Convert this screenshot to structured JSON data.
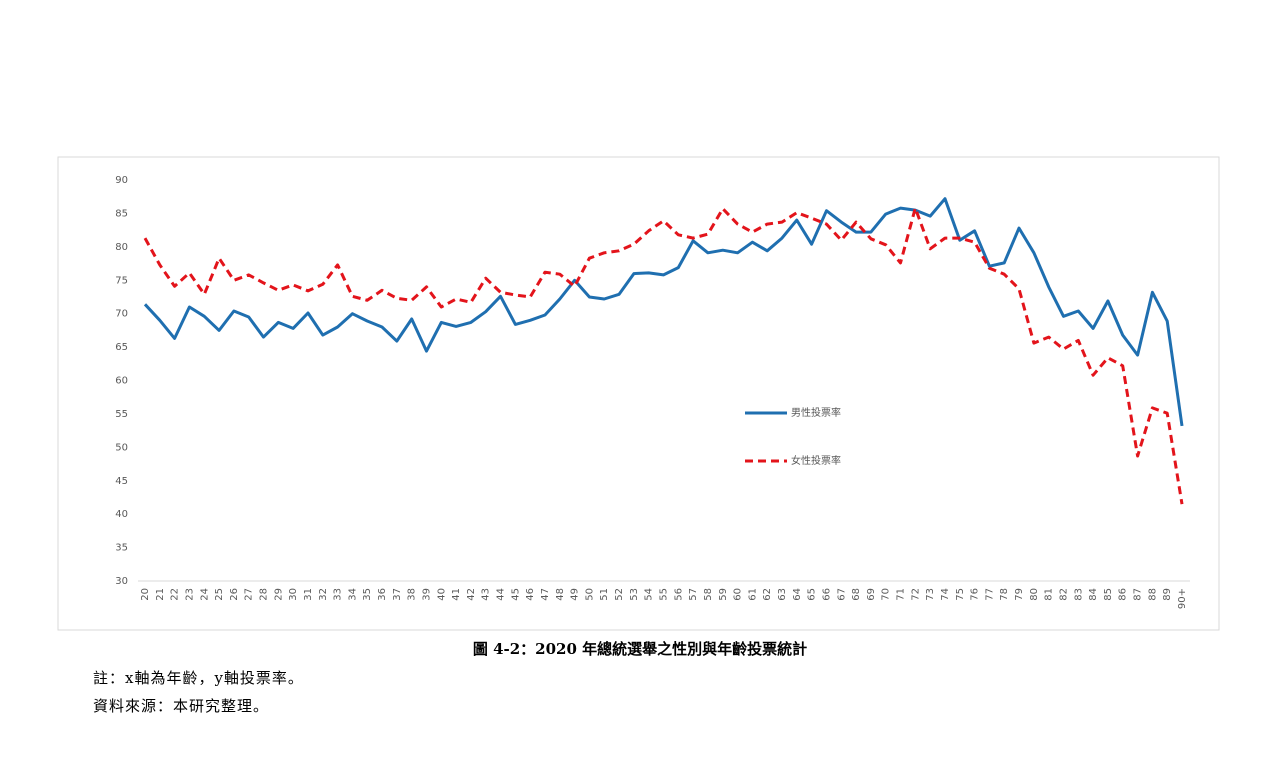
{
  "chart_data": {
    "type": "line",
    "categories": [
      "20",
      "21",
      "22",
      "23",
      "24",
      "25",
      "26",
      "27",
      "28",
      "29",
      "30",
      "31",
      "32",
      "33",
      "34",
      "35",
      "36",
      "37",
      "38",
      "39",
      "40",
      "41",
      "42",
      "43",
      "44",
      "45",
      "46",
      "47",
      "48",
      "49",
      "50",
      "51",
      "52",
      "53",
      "54",
      "55",
      "56",
      "57",
      "58",
      "59",
      "60",
      "61",
      "62",
      "63",
      "64",
      "65",
      "66",
      "67",
      "68",
      "69",
      "70",
      "71",
      "72",
      "73",
      "74",
      "75",
      "76",
      "77",
      "78",
      "79",
      "80",
      "81",
      "82",
      "83",
      "84",
      "85",
      "86",
      "87",
      "88",
      "89",
      "90+"
    ],
    "series": [
      {
        "name": "男性投票率",
        "color": "#1f6fb0",
        "dash": false,
        "values": [
          71.4,
          69,
          66.3,
          71,
          69.6,
          67.5,
          70.4,
          69.5,
          66.5,
          68.7,
          67.8,
          70.1,
          66.8,
          68,
          70,
          68.9,
          68,
          65.9,
          69.2,
          64.4,
          68.7,
          68.1,
          68.7,
          70.3,
          72.6,
          68.4,
          69,
          69.8,
          72.2,
          75,
          72.5,
          72.2,
          72.9,
          76,
          76.1,
          75.8,
          76.9,
          80.9,
          79.1,
          79.5,
          79.1,
          80.7,
          79.4,
          81.3,
          84,
          80.4,
          85.4,
          83.7,
          82.2,
          82.2,
          84.9,
          85.8,
          85.5,
          84.6,
          87.2,
          81,
          82.4,
          77.1,
          77.6,
          82.8,
          79.1,
          74,
          69.6,
          70.4,
          67.8,
          71.9,
          66.8,
          63.8,
          73.2,
          68.9,
          53.2
        ]
      },
      {
        "name": "女性投票率",
        "color": "#e3141b",
        "dash": true,
        "values": [
          81.3,
          77.3,
          74.1,
          76.1,
          72.9,
          78.3,
          75,
          75.8,
          74.6,
          73.5,
          74.3,
          73.4,
          74.4,
          77.3,
          72.6,
          72,
          73.5,
          72.3,
          72,
          74,
          71,
          72.2,
          71.7,
          75.3,
          73.2,
          72.8,
          72.5,
          76.2,
          75.9,
          74.1,
          78.3,
          79.1,
          79.4,
          80.4,
          82.4,
          83.9,
          81.8,
          81.3,
          81.9,
          85.7,
          83.4,
          82.2,
          83.4,
          83.7,
          85.1,
          84.3,
          83.4,
          81,
          83.7,
          81.2,
          80.3,
          77.6,
          85.8,
          79.7,
          81.3,
          81.3,
          80.7,
          76.8,
          75.9,
          73.7,
          65.6,
          66.5,
          64.7,
          66,
          60.8,
          63.4,
          62.2,
          48.7,
          55.9,
          55.1,
          41.5
        ]
      }
    ],
    "ylim": [
      30,
      90
    ],
    "yticks": [
      30,
      35,
      40,
      45,
      50,
      55,
      60,
      65,
      70,
      75,
      80,
      85,
      90
    ],
    "grid": false
  },
  "caption": "圖 4-2：2020 年總統選舉之性別與年齡投票統計",
  "notes": [
    "註：x軸為年齡，y軸投票率。",
    "資料來源：本研究整理。"
  ]
}
